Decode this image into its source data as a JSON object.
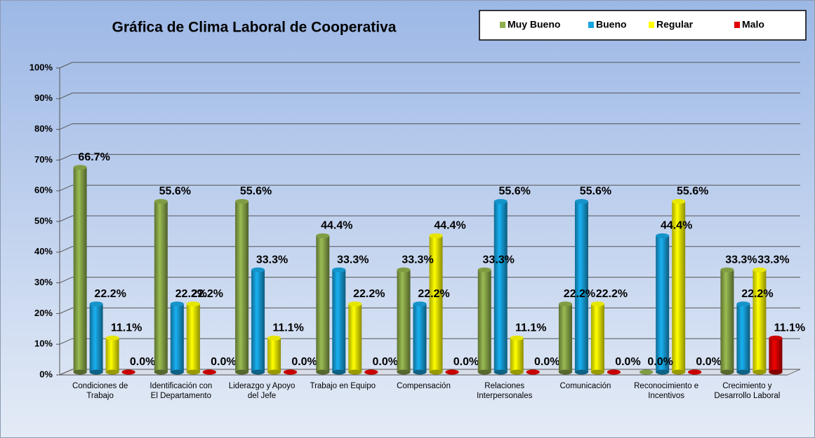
{
  "chart_data": {
    "type": "bar",
    "title": "Gráfica de Clima Laboral de Cooperativa",
    "categories": [
      "Condiciones de Trabajo",
      "Identificación con El Departamento",
      "Liderazgo y Apoyo del Jefe",
      "Trabajo en Equipo",
      "Compensación",
      "Relaciones Interpersonales",
      "Comunicación",
      "Reconocimiento e Incentivos",
      "Crecimiento y Desarrollo Laboral"
    ],
    "series": [
      {
        "name": "Muy Bueno",
        "color": "#8fae4c",
        "values": [
          66.7,
          55.6,
          55.6,
          44.4,
          33.3,
          33.3,
          22.2,
          0.0,
          33.3
        ],
        "value_labels": [
          "66.7%",
          "55.6%",
          "55.6%",
          "44.4%",
          "33.3%",
          "33.3%",
          "22.2%",
          "0.0%",
          "33.3%"
        ]
      },
      {
        "name": "Bueno",
        "color": "#17a4e0",
        "values": [
          22.2,
          22.2,
          33.3,
          33.3,
          22.2,
          55.6,
          55.6,
          44.4,
          22.2
        ],
        "value_labels": [
          "22.2%",
          "22.2%",
          "33.3%",
          "33.3%",
          "22.2%",
          "55.6%",
          "55.6%",
          "44.4%",
          "22.2%"
        ]
      },
      {
        "name": "Regular",
        "color": "#ffff00",
        "values": [
          11.1,
          22.2,
          11.1,
          22.2,
          44.4,
          11.1,
          22.2,
          55.6,
          33.3
        ],
        "value_labels": [
          "11.1%",
          "22.2%",
          "11.1%",
          "22.2%",
          "44.4%",
          "11.1%",
          "22.2%",
          "55.6%",
          "33.3%"
        ]
      },
      {
        "name": "Malo",
        "color": "#e00000",
        "values": [
          0.0,
          0.0,
          0.0,
          0.0,
          0.0,
          0.0,
          0.0,
          0.0,
          11.1
        ],
        "value_labels": [
          "0.0%",
          "0.0%",
          "0.0%",
          "0.0%",
          "0.0%",
          "0.0%",
          "0.0%",
          "0.0%",
          "11.1%"
        ]
      }
    ],
    "ylim": [
      0,
      100
    ],
    "yticks": [
      {
        "value": 0,
        "label": "0%"
      },
      {
        "value": 10,
        "label": "10%"
      },
      {
        "value": 20,
        "label": "20%"
      },
      {
        "value": 30,
        "label": "30%"
      },
      {
        "value": 40,
        "label": "40%"
      },
      {
        "value": 50,
        "label": "50%"
      },
      {
        "value": 60,
        "label": "60%"
      },
      {
        "value": 70,
        "label": "70%"
      },
      {
        "value": 80,
        "label": "80%"
      },
      {
        "value": 90,
        "label": "90%"
      },
      {
        "value": 100,
        "label": "100%"
      }
    ],
    "grid": true,
    "legend": "top-right"
  }
}
